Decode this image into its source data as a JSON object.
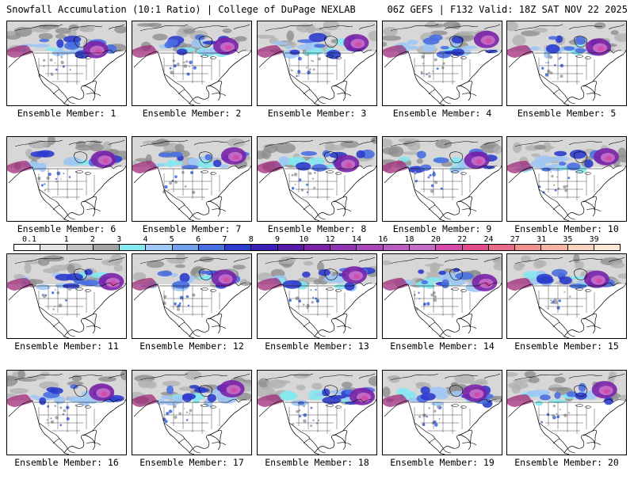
{
  "header": {
    "title": "Snowfall Accumulation (10:1 Ratio) | College of DuPage NEXLAB",
    "run_info": "06Z GEFS | F132 Valid: 18Z SAT NOV 22 2025"
  },
  "colorbar": {
    "labels": [
      "0.1",
      "1",
      "2",
      "3",
      "4",
      "5",
      "6",
      "7",
      "8",
      "9",
      "10",
      "12",
      "14",
      "16",
      "18",
      "20",
      "22",
      "24",
      "27",
      "31",
      "35",
      "39"
    ],
    "colors": [
      "#ffffff",
      "#e2e2e2",
      "#c4c4c4",
      "#a3a3a3",
      "#84e8f0",
      "#9ec7f4",
      "#6f9fe8",
      "#4a6fe0",
      "#2c3ccc",
      "#3b1fb8",
      "#5a1aa8",
      "#7a22a8",
      "#8e34b0",
      "#a847b8",
      "#b85cc0",
      "#c46bc8",
      "#d44aa8",
      "#e04c8c",
      "#e86b8a",
      "#ef8f8e",
      "#f4b3a3",
      "#f8d2bd",
      "#fbe6d2"
    ]
  },
  "panels": [
    {
      "caption": "Ensemble Member: 1"
    },
    {
      "caption": "Ensemble Member: 2"
    },
    {
      "caption": "Ensemble Member: 3"
    },
    {
      "caption": "Ensemble Member: 4"
    },
    {
      "caption": "Ensemble Member: 5"
    },
    {
      "caption": "Ensemble Member: 6"
    },
    {
      "caption": "Ensemble Member: 7"
    },
    {
      "caption": "Ensemble Member: 8"
    },
    {
      "caption": "Ensemble Member: 9"
    },
    {
      "caption": "Ensemble Member: 10"
    },
    {
      "caption": "Ensemble Member: 11"
    },
    {
      "caption": "Ensemble Member: 12"
    },
    {
      "caption": "Ensemble Member: 13"
    },
    {
      "caption": "Ensemble Member: 14"
    },
    {
      "caption": "Ensemble Member: 15"
    },
    {
      "caption": "Ensemble Member: 16"
    },
    {
      "caption": "Ensemble Member: 17"
    },
    {
      "caption": "Ensemble Member: 18"
    },
    {
      "caption": "Ensemble Member: 19"
    },
    {
      "caption": "Ensemble Member: 20"
    }
  ]
}
